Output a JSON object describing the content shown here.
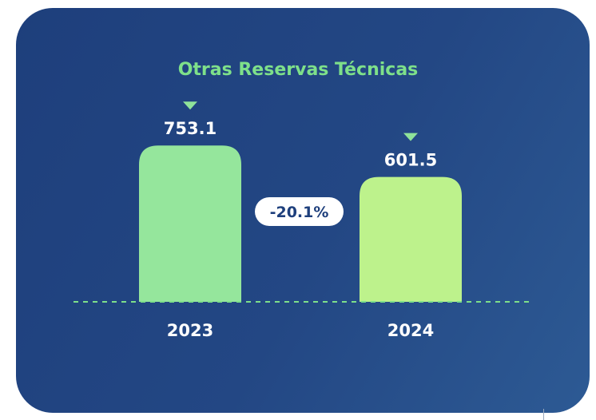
{
  "chart_data": {
    "type": "bar",
    "title": "Otras Reservas Técnicas",
    "categories": [
      "2023",
      "2024"
    ],
    "values": [
      753.1,
      601.5
    ],
    "value_labels": [
      "753.1",
      "601.5"
    ],
    "change_label": "-20.1%",
    "grid": false,
    "legend": "none"
  },
  "colors": {
    "background": "#1f417e",
    "title": "#7ee08a",
    "bar_2023": "#95e69c",
    "bar_2024": "#bdf28c",
    "marker": "#8fe39a",
    "baseline": "#7ee08a",
    "badge_bg": "#ffffff",
    "badge_text": "#1e3f7c",
    "label_text": "#ffffff"
  }
}
